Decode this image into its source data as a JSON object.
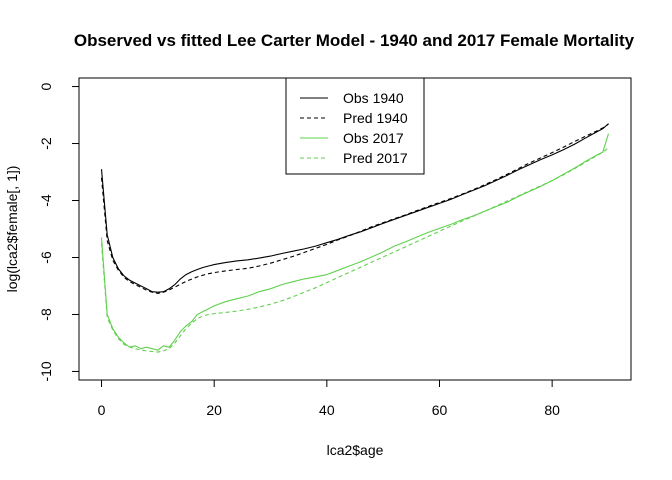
{
  "chart_data": {
    "type": "line",
    "title": "Observed vs fitted Lee Carter Model - 1940 and 2017 Female Mortality",
    "xlabel": "lca2$age",
    "ylabel": "log(lca2$female[, 1])",
    "xlim": [
      -4,
      94
    ],
    "ylim": [
      -10.3,
      0.3
    ],
    "xticks": [
      0,
      20,
      40,
      60,
      80
    ],
    "yticks": [
      0,
      -2,
      -4,
      -6,
      -8,
      -10
    ],
    "legend_position": "top-center",
    "series": [
      {
        "name": "Obs 1940",
        "color": "#000000",
        "dash": "solid",
        "x": [
          0,
          1,
          2,
          3,
          4,
          5,
          6,
          7,
          8,
          9,
          10,
          11,
          12,
          13,
          14,
          15,
          16,
          17,
          18,
          19,
          20,
          22,
          24,
          26,
          28,
          30,
          32,
          34,
          36,
          38,
          40,
          42,
          44,
          46,
          48,
          50,
          52,
          54,
          56,
          58,
          60,
          62,
          64,
          66,
          68,
          70,
          72,
          74,
          76,
          78,
          80,
          82,
          84,
          86,
          88,
          89,
          90
        ],
        "y": [
          -2.9,
          -5.2,
          -6.0,
          -6.4,
          -6.65,
          -6.8,
          -6.9,
          -7.0,
          -7.1,
          -7.2,
          -7.22,
          -7.2,
          -7.1,
          -6.95,
          -6.75,
          -6.6,
          -6.5,
          -6.42,
          -6.35,
          -6.3,
          -6.25,
          -6.18,
          -6.12,
          -6.08,
          -6.02,
          -5.95,
          -5.86,
          -5.78,
          -5.7,
          -5.6,
          -5.48,
          -5.36,
          -5.22,
          -5.1,
          -4.95,
          -4.8,
          -4.66,
          -4.52,
          -4.38,
          -4.24,
          -4.1,
          -3.96,
          -3.8,
          -3.64,
          -3.48,
          -3.3,
          -3.12,
          -2.92,
          -2.74,
          -2.56,
          -2.4,
          -2.22,
          -2.02,
          -1.8,
          -1.58,
          -1.48,
          -1.3
        ]
      },
      {
        "name": "Pred 1940",
        "color": "#000000",
        "dash": "dashed",
        "x": [
          0,
          1,
          2,
          3,
          4,
          5,
          6,
          7,
          8,
          9,
          10,
          11,
          12,
          13,
          14,
          15,
          16,
          17,
          18,
          19,
          20,
          22,
          24,
          26,
          28,
          30,
          32,
          34,
          36,
          38,
          40,
          42,
          44,
          46,
          48,
          50,
          52,
          54,
          56,
          58,
          60,
          62,
          64,
          66,
          68,
          70,
          72,
          74,
          76,
          78,
          80,
          82,
          84,
          86,
          88,
          89,
          90
        ],
        "y": [
          -3.2,
          -5.4,
          -6.1,
          -6.45,
          -6.7,
          -6.85,
          -6.95,
          -7.05,
          -7.15,
          -7.22,
          -7.26,
          -7.22,
          -7.14,
          -7.04,
          -6.94,
          -6.84,
          -6.76,
          -6.68,
          -6.62,
          -6.57,
          -6.53,
          -6.47,
          -6.42,
          -6.38,
          -6.3,
          -6.2,
          -6.08,
          -5.96,
          -5.82,
          -5.68,
          -5.54,
          -5.38,
          -5.24,
          -5.08,
          -4.92,
          -4.78,
          -4.64,
          -4.5,
          -4.35,
          -4.21,
          -4.07,
          -3.93,
          -3.78,
          -3.62,
          -3.45,
          -3.27,
          -3.08,
          -2.88,
          -2.68,
          -2.5,
          -2.32,
          -2.13,
          -1.93,
          -1.74,
          -1.55,
          -1.45,
          -1.32
        ]
      },
      {
        "name": "Obs 2017",
        "color": "#61D04F",
        "dash": "solid",
        "x": [
          0,
          1,
          2,
          3,
          4,
          5,
          6,
          7,
          8,
          9,
          10,
          11,
          12,
          13,
          14,
          15,
          16,
          17,
          18,
          19,
          20,
          22,
          24,
          26,
          28,
          30,
          32,
          34,
          36,
          38,
          40,
          42,
          44,
          46,
          48,
          50,
          52,
          54,
          56,
          58,
          60,
          62,
          64,
          66,
          68,
          70,
          72,
          74,
          76,
          78,
          80,
          82,
          84,
          86,
          88,
          89,
          90
        ],
        "y": [
          -5.3,
          -8.0,
          -8.5,
          -8.8,
          -9.0,
          -9.15,
          -9.1,
          -9.2,
          -9.15,
          -9.2,
          -9.25,
          -9.1,
          -9.15,
          -8.9,
          -8.6,
          -8.4,
          -8.25,
          -8.0,
          -7.9,
          -7.8,
          -7.7,
          -7.55,
          -7.45,
          -7.35,
          -7.2,
          -7.1,
          -6.95,
          -6.85,
          -6.75,
          -6.68,
          -6.6,
          -6.45,
          -6.3,
          -6.15,
          -5.98,
          -5.8,
          -5.6,
          -5.45,
          -5.28,
          -5.12,
          -4.98,
          -4.84,
          -4.68,
          -4.54,
          -4.38,
          -4.22,
          -4.06,
          -3.86,
          -3.68,
          -3.5,
          -3.3,
          -3.08,
          -2.86,
          -2.62,
          -2.4,
          -2.3,
          -1.65
        ]
      },
      {
        "name": "Pred 2017",
        "color": "#61D04F",
        "dash": "dashed",
        "x": [
          0,
          1,
          2,
          3,
          4,
          5,
          6,
          7,
          8,
          9,
          10,
          11,
          12,
          13,
          14,
          15,
          16,
          17,
          18,
          19,
          20,
          22,
          24,
          26,
          28,
          30,
          32,
          34,
          36,
          38,
          40,
          42,
          44,
          46,
          48,
          50,
          52,
          54,
          56,
          58,
          60,
          62,
          64,
          66,
          68,
          70,
          72,
          74,
          76,
          78,
          80,
          82,
          84,
          86,
          88,
          89,
          90
        ],
        "y": [
          -5.5,
          -8.1,
          -8.55,
          -8.85,
          -9.05,
          -9.15,
          -9.2,
          -9.25,
          -9.28,
          -9.3,
          -9.32,
          -9.28,
          -9.2,
          -9.0,
          -8.75,
          -8.5,
          -8.3,
          -8.15,
          -8.05,
          -8.0,
          -7.97,
          -7.93,
          -7.88,
          -7.82,
          -7.74,
          -7.64,
          -7.52,
          -7.38,
          -7.22,
          -7.06,
          -6.88,
          -6.7,
          -6.52,
          -6.34,
          -6.16,
          -5.98,
          -5.8,
          -5.62,
          -5.44,
          -5.26,
          -5.08,
          -4.9,
          -4.72,
          -4.55,
          -4.38,
          -4.2,
          -4.02,
          -3.84,
          -3.66,
          -3.48,
          -3.3,
          -3.1,
          -2.88,
          -2.65,
          -2.42,
          -2.3,
          -2.15
        ]
      }
    ]
  }
}
